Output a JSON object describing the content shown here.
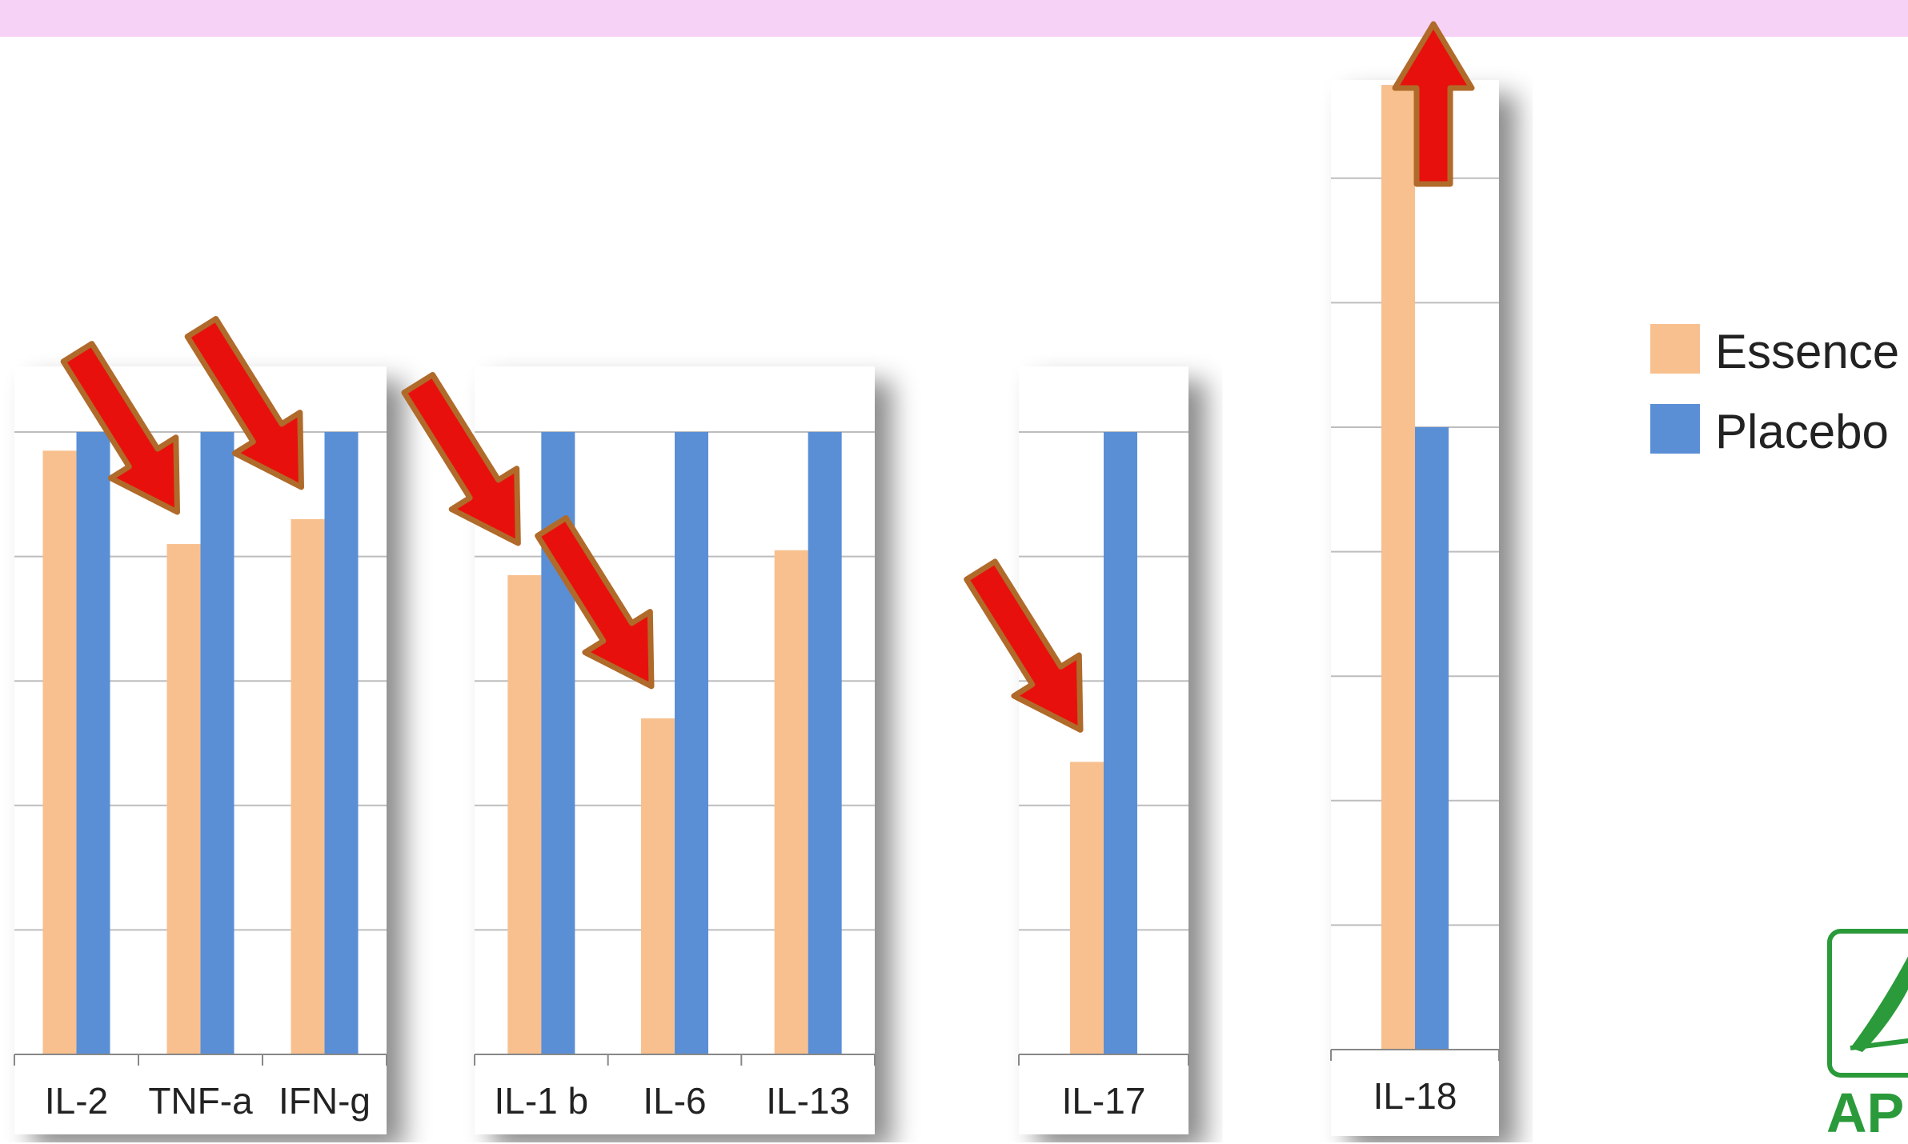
{
  "chart_data": {
    "type": "bar",
    "series": [
      {
        "name": "Essence",
        "color": "#f8c08e"
      },
      {
        "name": "Placebo",
        "color": "#5a8fd6"
      }
    ],
    "panels": [
      {
        "categories": [
          "IL-2",
          "TNF-a",
          "IFN-g"
        ],
        "essence": [
          97,
          82,
          86
        ],
        "placebo": [
          100,
          100,
          100
        ]
      },
      {
        "categories": [
          "IL-1 b",
          "IL-6",
          "IL-13"
        ],
        "essence": [
          77,
          54,
          81
        ],
        "placebo": [
          100,
          100,
          100
        ]
      },
      {
        "categories": [
          "IL-17"
        ],
        "essence": [
          47
        ],
        "placebo": [
          100
        ]
      },
      {
        "categories": [
          "IL-18"
        ],
        "essence": [
          155
        ],
        "placebo": [
          100
        ]
      }
    ],
    "ylim": [
      0,
      160
    ],
    "grid": true,
    "legend": "right"
  },
  "arrows": [
    {
      "target": "TNF-a",
      "direction": "down"
    },
    {
      "target": "IFN-g",
      "direction": "down"
    },
    {
      "target": "IL-1 b",
      "direction": "down"
    },
    {
      "target": "IL-6",
      "direction": "down"
    },
    {
      "target": "IL-17",
      "direction": "down"
    },
    {
      "target": "IL-18",
      "direction": "up"
    }
  ],
  "colors": {
    "banner": "#f7d2f7",
    "arrow_fill": "#e8100c",
    "arrow_edge": "#b06a2a"
  },
  "logo": {
    "icon": "company-logo-icon",
    "color": "#2a9a3a"
  }
}
